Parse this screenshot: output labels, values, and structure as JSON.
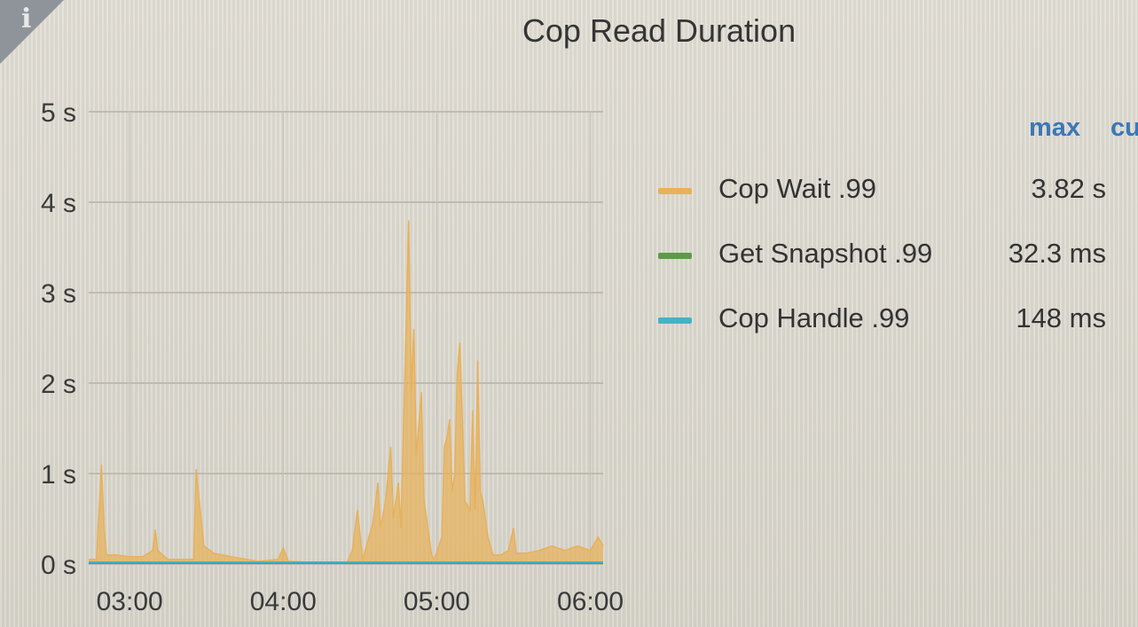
{
  "panel": {
    "title": "Cop Read Duration",
    "info_icon": "i"
  },
  "legend": {
    "headers": [
      "max",
      "cu"
    ],
    "items": [
      {
        "name": "Cop Wait .99",
        "max": "3.82 s",
        "color": "#e8b15a"
      },
      {
        "name": "Get Snapshot .99",
        "max": "32.3 ms",
        "color": "#5d9a48"
      },
      {
        "name": "Cop Handle .99",
        "max": "148 ms",
        "color": "#45b3c1"
      }
    ]
  },
  "chart_data": {
    "type": "area",
    "ylim": [
      0,
      5
    ],
    "y_ticks": [
      0,
      1,
      2,
      3,
      4,
      5
    ],
    "y_tick_labels": [
      "0 s",
      "1 s",
      "2 s",
      "3 s",
      "4 s",
      "5 s"
    ],
    "x_range": [
      "02:44",
      "06:05"
    ],
    "x_ticks": [
      "03:00",
      "04:00",
      "05:00",
      "06:00"
    ],
    "grid": true,
    "legend_position": "right",
    "series": [
      {
        "name": "Cop Wait .99",
        "color": "#e8b15a",
        "unit": "s",
        "points": [
          [
            "02:44",
            0.05
          ],
          [
            "02:47",
            0.05
          ],
          [
            "02:49",
            1.1
          ],
          [
            "02:50",
            0.4
          ],
          [
            "02:51",
            0.1
          ],
          [
            "02:55",
            0.1
          ],
          [
            "03:00",
            0.08
          ],
          [
            "03:05",
            0.08
          ],
          [
            "03:09",
            0.15
          ],
          [
            "03:10",
            0.38
          ],
          [
            "03:11",
            0.15
          ],
          [
            "03:15",
            0.05
          ],
          [
            "03:20",
            0.05
          ],
          [
            "03:25",
            0.05
          ],
          [
            "03:26",
            1.05
          ],
          [
            "03:27",
            0.75
          ],
          [
            "03:29",
            0.2
          ],
          [
            "03:33",
            0.12
          ],
          [
            "03:40",
            0.08
          ],
          [
            "03:50",
            0.03
          ],
          [
            "03:58",
            0.05
          ],
          [
            "04:00",
            0.18
          ],
          [
            "04:02",
            0.03
          ],
          [
            "04:10",
            0.02
          ],
          [
            "04:20",
            0.02
          ],
          [
            "04:25",
            0.02
          ],
          [
            "04:27",
            0.15
          ],
          [
            "04:29",
            0.6
          ],
          [
            "04:31",
            0.05
          ],
          [
            "04:35",
            0.45
          ],
          [
            "04:37",
            0.9
          ],
          [
            "04:38",
            0.4
          ],
          [
            "04:40",
            0.7
          ],
          [
            "04:42",
            1.3
          ],
          [
            "04:43",
            0.5
          ],
          [
            "04:45",
            0.9
          ],
          [
            "04:46",
            0.4
          ],
          [
            "04:48",
            2.6
          ],
          [
            "04:49",
            3.8
          ],
          [
            "04:50",
            1.9
          ],
          [
            "04:51",
            2.6
          ],
          [
            "04:52",
            1.2
          ],
          [
            "04:54",
            1.9
          ],
          [
            "04:55",
            0.7
          ],
          [
            "04:57",
            0.3
          ],
          [
            "04:58",
            0.1
          ],
          [
            "04:59",
            0.05
          ],
          [
            "05:02",
            0.3
          ],
          [
            "05:03",
            1.3
          ],
          [
            "05:04",
            1.4
          ],
          [
            "05:05",
            1.6
          ],
          [
            "05:06",
            0.8
          ],
          [
            "05:07",
            1.0
          ],
          [
            "05:08",
            2.1
          ],
          [
            "05:09",
            2.45
          ],
          [
            "05:10",
            1.6
          ],
          [
            "05:11",
            0.7
          ],
          [
            "05:13",
            0.6
          ],
          [
            "05:14",
            1.7
          ],
          [
            "05:15",
            0.6
          ],
          [
            "05:16",
            2.25
          ],
          [
            "05:17",
            0.8
          ],
          [
            "05:18",
            0.7
          ],
          [
            "05:20",
            0.3
          ],
          [
            "05:22",
            0.1
          ],
          [
            "05:25",
            0.1
          ],
          [
            "05:28",
            0.15
          ],
          [
            "05:30",
            0.4
          ],
          [
            "05:31",
            0.12
          ],
          [
            "05:35",
            0.12
          ],
          [
            "05:40",
            0.15
          ],
          [
            "05:45",
            0.2
          ],
          [
            "05:50",
            0.15
          ],
          [
            "05:55",
            0.2
          ],
          [
            "06:00",
            0.15
          ],
          [
            "06:03",
            0.3
          ],
          [
            "06:05",
            0.2
          ]
        ]
      },
      {
        "name": "Get Snapshot .99",
        "color": "#5d9a48",
        "unit": "s",
        "points": [
          [
            "02:44",
            0.01
          ],
          [
            "06:05",
            0.01
          ]
        ]
      },
      {
        "name": "Cop Handle .99",
        "color": "#45b3c1",
        "unit": "s",
        "points": [
          [
            "02:44",
            0.02
          ],
          [
            "06:05",
            0.02
          ]
        ]
      }
    ]
  }
}
